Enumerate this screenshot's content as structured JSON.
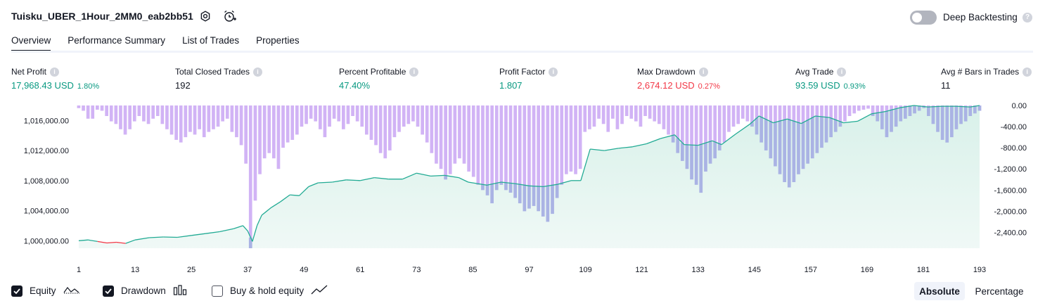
{
  "header": {
    "strategy_title": "Tuisku_UBER_1Hour_2MM0_eab2bb51",
    "deep_backtesting_label": "Deep Backtesting",
    "deep_backtesting_enabled": false
  },
  "tabs": [
    {
      "label": "Overview",
      "active": true
    },
    {
      "label": "Performance Summary",
      "active": false
    },
    {
      "label": "List of Trades",
      "active": false
    },
    {
      "label": "Properties",
      "active": false
    }
  ],
  "metrics": [
    {
      "label": "Net Profit",
      "value": "17,968.43 USD",
      "percent": "1.80%",
      "tone": "pos"
    },
    {
      "label": "Total Closed Trades",
      "value": "192",
      "percent": "",
      "tone": "neu"
    },
    {
      "label": "Percent Profitable",
      "value": "47.40%",
      "percent": "",
      "tone": "pos"
    },
    {
      "label": "Profit Factor",
      "value": "1.807",
      "percent": "",
      "tone": "pos"
    },
    {
      "label": "Max Drawdown",
      "value": "2,674.12 USD",
      "percent": "0.27%",
      "tone": "neg"
    },
    {
      "label": "Avg Trade",
      "value": "93.59 USD",
      "percent": "0.93%",
      "tone": "pos"
    },
    {
      "label": "Avg # Bars in Trades",
      "value": "11",
      "percent": "",
      "tone": "neu"
    }
  ],
  "legend": {
    "equity": {
      "label": "Equity",
      "checked": true
    },
    "drawdown": {
      "label": "Drawdown",
      "checked": true
    },
    "buy_hold": {
      "label": "Buy & hold equity",
      "checked": false
    }
  },
  "view_mode": {
    "options": [
      "Absolute",
      "Percentage"
    ],
    "selected": "Absolute"
  },
  "colors": {
    "equity_line": "#22ab94",
    "equity_loss_line": "#f23645",
    "equity_fill": "#d4efe7",
    "drawdown_bar": "#d1b3f5",
    "drawdown_overlap": "#aab3e4",
    "positive": "#089981",
    "negative": "#f23645"
  },
  "chart_data": {
    "type": "line",
    "x_ticks": [
      1,
      13,
      25,
      37,
      49,
      61,
      73,
      85,
      97,
      109,
      121,
      133,
      145,
      157,
      169,
      181,
      193
    ],
    "equity_axis": {
      "ticks": [
        "1,000,000.00",
        "1,004,000.00",
        "1,008,000.00",
        "1,012,000.00",
        "1,016,000.00"
      ],
      "range": [
        999000,
        1018000
      ]
    },
    "drawdown_axis": {
      "ticks": [
        "0.00",
        "-400.00",
        "-800.00",
        "-1,200.00",
        "-1,600.00",
        "-2,000.00",
        "-2,400.00"
      ],
      "range": [
        -2700,
        0
      ]
    },
    "series": [
      {
        "name": "Equity",
        "points": [
          [
            1,
            1000000
          ],
          [
            3,
            1000100
          ],
          [
            5,
            999900
          ],
          [
            7,
            999700
          ],
          [
            9,
            999800
          ],
          [
            11,
            999650
          ],
          [
            13,
            1000100
          ],
          [
            16,
            1000400
          ],
          [
            19,
            1000500
          ],
          [
            22,
            1000450
          ],
          [
            25,
            1000700
          ],
          [
            28,
            1000950
          ],
          [
            31,
            1001200
          ],
          [
            34,
            1001600
          ],
          [
            36,
            1002000
          ],
          [
            37,
            1001300
          ],
          [
            38,
            999900
          ],
          [
            39,
            1002000
          ],
          [
            40,
            1003400
          ],
          [
            42,
            1004400
          ],
          [
            44,
            1005200
          ],
          [
            46,
            1006100
          ],
          [
            48,
            1006000
          ],
          [
            50,
            1007200
          ],
          [
            52,
            1007700
          ],
          [
            55,
            1007800
          ],
          [
            58,
            1008100
          ],
          [
            61,
            1008000
          ],
          [
            64,
            1008400
          ],
          [
            67,
            1008200
          ],
          [
            70,
            1008200
          ],
          [
            73,
            1009000
          ],
          [
            76,
            1008600
          ],
          [
            79,
            1008700
          ],
          [
            82,
            1008400
          ],
          [
            84,
            1007800
          ],
          [
            86,
            1007600
          ],
          [
            88,
            1007400
          ],
          [
            91,
            1007800
          ],
          [
            94,
            1007600
          ],
          [
            97,
            1007300
          ],
          [
            100,
            1007200
          ],
          [
            103,
            1007500
          ],
          [
            106,
            1008000
          ],
          [
            108,
            1008000
          ],
          [
            110,
            1012200
          ],
          [
            113,
            1012000
          ],
          [
            116,
            1012300
          ],
          [
            119,
            1012500
          ],
          [
            122,
            1012900
          ],
          [
            125,
            1013600
          ],
          [
            128,
            1014100
          ],
          [
            130,
            1012800
          ],
          [
            133,
            1012700
          ],
          [
            136,
            1013300
          ],
          [
            138,
            1012800
          ],
          [
            141,
            1014200
          ],
          [
            144,
            1015500
          ],
          [
            146,
            1016600
          ],
          [
            149,
            1015700
          ],
          [
            152,
            1016200
          ],
          [
            155,
            1015600
          ],
          [
            158,
            1016600
          ],
          [
            161,
            1016400
          ],
          [
            164,
            1015700
          ],
          [
            167,
            1015900
          ],
          [
            170,
            1016900
          ],
          [
            173,
            1017200
          ],
          [
            176,
            1017700
          ],
          [
            179,
            1018000
          ],
          [
            182,
            1017800
          ],
          [
            185,
            1017900
          ],
          [
            188,
            1017900
          ],
          [
            191,
            1017800
          ],
          [
            193,
            1018000
          ]
        ]
      },
      {
        "name": "Drawdown",
        "values": [
          -50,
          -100,
          -250,
          -250,
          -80,
          -100,
          -200,
          -300,
          -350,
          -450,
          -550,
          -450,
          -300,
          -200,
          -300,
          -350,
          -250,
          -200,
          -350,
          -450,
          -550,
          -650,
          -700,
          -600,
          -500,
          -550,
          -450,
          -600,
          -500,
          -450,
          -400,
          -300,
          -250,
          -500,
          -600,
          -750,
          -1100,
          -2700,
          -1800,
          -1300,
          -1000,
          -900,
          -1000,
          -1200,
          -800,
          -700,
          -650,
          -550,
          -400,
          -350,
          -250,
          -300,
          -450,
          -600,
          -400,
          -250,
          -300,
          -450,
          -350,
          -200,
          -300,
          -400,
          -550,
          -650,
          -750,
          -900,
          -1000,
          -850,
          -600,
          -500,
          -400,
          -350,
          -300,
          -400,
          -550,
          -700,
          -900,
          -1100,
          -1200,
          -1400,
          -1300,
          -1100,
          -1000,
          -1100,
          -1250,
          -1350,
          -1500,
          -1600,
          -1700,
          -1850,
          -1600,
          -1500,
          -1600,
          -1650,
          -1750,
          -1850,
          -2000,
          -1950,
          -1900,
          -2000,
          -2100,
          -2200,
          -2050,
          -1750,
          -1500,
          -1300,
          -1250,
          -1300,
          -1200,
          -500,
          -450,
          -400,
          -250,
          -350,
          -500,
          -250,
          -450,
          -350,
          -200,
          -250,
          -300,
          -400,
          -200,
          -250,
          -300,
          -350,
          -450,
          -550,
          -700,
          -900,
          -1050,
          -1200,
          -1400,
          -1500,
          -1650,
          -1250,
          -1100,
          -1000,
          -850,
          -700,
          -500,
          -400,
          -350,
          -250,
          -300,
          -400,
          -550,
          -700,
          -850,
          -1000,
          -1150,
          -1300,
          -1450,
          -1550,
          -1450,
          -1300,
          -1200,
          -1100,
          -1000,
          -900,
          -800,
          -700,
          -600,
          -500,
          -400,
          -300,
          -200,
          -150,
          -100,
          -80,
          -60,
          -200,
          -300,
          -450,
          -600,
          -500,
          -400,
          -300,
          -250,
          -200,
          -150,
          -100,
          -50,
          -200,
          -350,
          -500,
          -650,
          -700,
          -600,
          -450,
          -350,
          -300,
          -200,
          -150,
          -100
        ]
      }
    ],
    "xlim": [
      1,
      193
    ]
  }
}
